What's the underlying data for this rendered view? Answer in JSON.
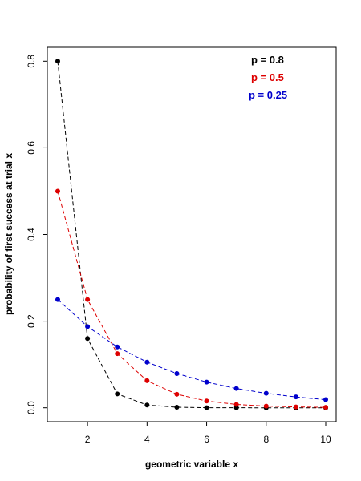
{
  "chart_data": {
    "type": "line",
    "xlabel": "geometric variable x",
    "ylabel": "probability of first success at trial x",
    "xlim": [
      0.65,
      10.35
    ],
    "ylim": [
      -0.032,
      0.832
    ],
    "x_ticks": [
      2,
      4,
      6,
      8,
      10
    ],
    "y_ticks": [
      0.0,
      0.2,
      0.4,
      0.6,
      0.8
    ],
    "x_tick_labels": [
      "2",
      "4",
      "6",
      "8",
      "10"
    ],
    "y_tick_labels": [
      "0.0",
      "0.2",
      "0.4",
      "0.6",
      "0.8"
    ],
    "grid": false,
    "legend_position": "top-right",
    "x": [
      1,
      2,
      3,
      4,
      5,
      6,
      7,
      8,
      9,
      10
    ],
    "series": [
      {
        "name": "p = 0.8",
        "color": "#000000",
        "values": [
          0.8,
          0.16,
          0.032,
          0.0064,
          0.00128,
          0.000256,
          5.12e-05,
          1.024e-05,
          2.048e-06,
          4.096e-07
        ]
      },
      {
        "name": "p = 0.5",
        "color": "#dd0000",
        "values": [
          0.5,
          0.25,
          0.125,
          0.0625,
          0.03125,
          0.015625,
          0.0078125,
          0.00390625,
          0.001953125,
          0.0009765625
        ]
      },
      {
        "name": "p = 0.25",
        "color": "#0000cc",
        "values": [
          0.25,
          0.1875,
          0.140625,
          0.10546875,
          0.0791015625,
          0.059326171875,
          0.04449462890625,
          0.0333709716796875,
          0.025028228759765625,
          0.01877117156982422
        ]
      }
    ]
  }
}
